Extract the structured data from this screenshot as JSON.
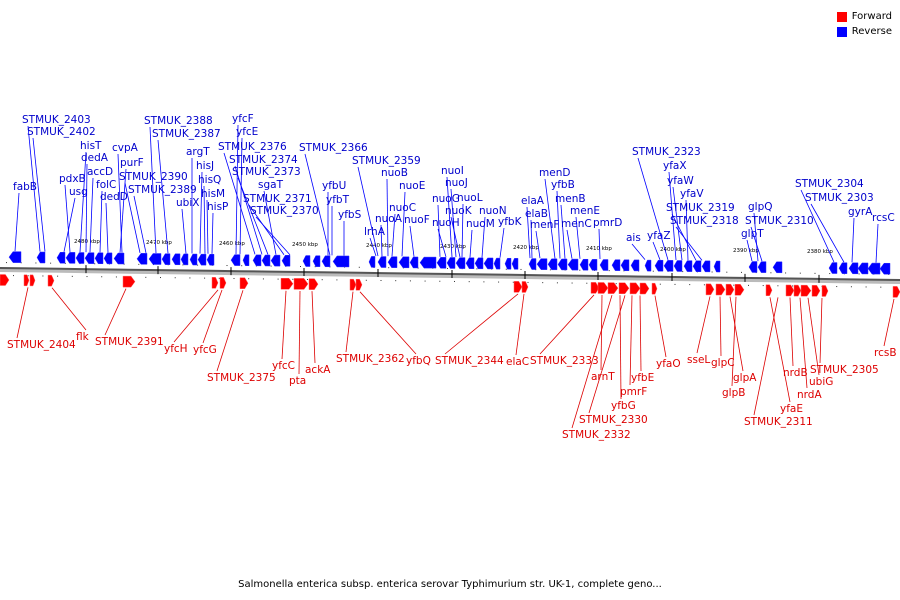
{
  "legend": {
    "forward_label": "Forward",
    "reverse_label": "Reverse",
    "forward_color": "#ff0000",
    "reverse_color": "#0000ff"
  },
  "caption": "Salmonella enterica subsp. enterica serovar Typhimurium str. UK-1, complete geno...",
  "scale_ticks": [
    "2480 kbp",
    "2470 kbp",
    "2460 kbp",
    "2450 kbp",
    "2440 kbp",
    "2430 kbp",
    "2420 kbp",
    "2410 kbp",
    "2400 kbp",
    "2390 kbp",
    "2380 kbp"
  ],
  "reverse_genes": [
    "fabB",
    "STMUK_2403",
    "STMUK_2402",
    "usg",
    "pdxB",
    "hisT",
    "dedA",
    "accD",
    "folC",
    "dedD",
    "cvpA",
    "purF",
    "STMUK_2390",
    "STMUK_2389",
    "STMUK_2388",
    "STMUK_2387",
    "ubiX",
    "argT",
    "hisJ",
    "hisQ",
    "hisM",
    "hisP",
    "yfcF",
    "yfcE",
    "STMUK_2376",
    "STMUK_2374",
    "STMUK_2373",
    "sgaT",
    "STMUK_2371",
    "STMUK_2370",
    "STMUK_2366",
    "yfbU",
    "yfbT",
    "yfbS",
    "STMUK_2359",
    "lrhA",
    "nuoA",
    "nuoB",
    "nuoC",
    "nuoE",
    "nuoF",
    "nuoG",
    "nuoH",
    "nuoI",
    "nuoJ",
    "nuoK",
    "nuoL",
    "nuoM",
    "nuoN",
    "yfbK",
    "elaA",
    "elaB",
    "menF",
    "menD",
    "yfbB",
    "menB",
    "menC",
    "menE",
    "pmrD",
    "ais",
    "yfaZ",
    "STMUK_2323",
    "yfaX",
    "yfaW",
    "yfaV",
    "STMUK_2319",
    "STMUK_2318",
    "glpT",
    "glpQ",
    "STMUK_2310",
    "STMUK_2304",
    "STMUK_2303",
    "gyrA",
    "rcsC"
  ],
  "forward_genes": [
    "STMUK_2404",
    "flk",
    "STMUK_2391",
    "yfcH",
    "yfcG",
    "STMUK_2375",
    "yfcC",
    "pta",
    "ackA",
    "STMUK_2362",
    "yfbQ",
    "STMUK_2344",
    "elaC",
    "STMUK_2333",
    "arnT",
    "STMUK_2332",
    "yfbG",
    "STMUK_2330",
    "pmrF",
    "yfbE",
    "yfaO",
    "sseL",
    "glpC",
    "glpA",
    "glpB",
    "yfaE",
    "STMUK_2311",
    "nrdB",
    "nrdA",
    "ubiG",
    "STMUK_2305",
    "rcsB"
  ]
}
